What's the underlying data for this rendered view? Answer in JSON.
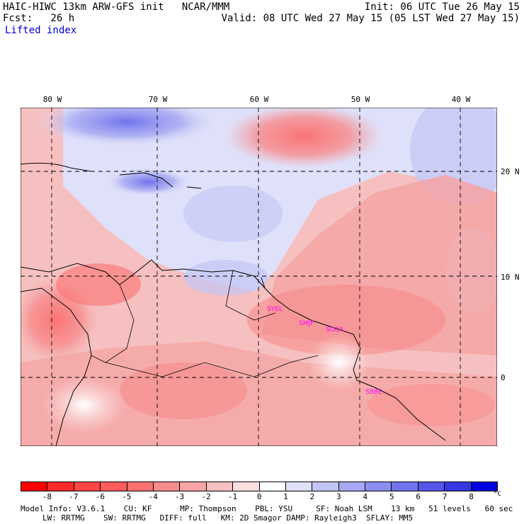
{
  "header": {
    "left_line1": "HAIC-HIWC 13km ARW-GFS init   NCAR/MMM",
    "left_line2": "Fcst:   26 h",
    "field_name": "Lifted index",
    "right_line1": "Init: 06 UTC Tue 26 May 15",
    "right_line2": "Valid: 08 UTC Wed 27 May 15 (05 LST Wed 27 May 15)"
  },
  "longitude_labels": [
    "80 W",
    "70 W",
    "60 W",
    "50 W",
    "40 W"
  ],
  "latitude_labels": [
    "20 N",
    "10 N",
    "0"
  ],
  "cities": [
    "SYEL",
    "SMJP",
    "SOCA",
    "SBBE"
  ],
  "colorbar": {
    "ticks": [
      "-8",
      "-7",
      "-6",
      "-5",
      "-4",
      "-3",
      "-2",
      "-1",
      "0",
      "1",
      "2",
      "3",
      "4",
      "5",
      "6",
      "7",
      "8"
    ],
    "unit": "°C",
    "colors": [
      "#ff0000",
      "#ff2a2a",
      "#ff4545",
      "#fc5c5c",
      "#fa7272",
      "#f78c8c",
      "#f5a5a5",
      "#f7c0c0",
      "#fcdede",
      "#ffffff",
      "#dfe0fa",
      "#c3c5f5",
      "#a6a9f2",
      "#8b8def",
      "#7173ec",
      "#5557e8",
      "#3537e4",
      "#0000e0"
    ]
  },
  "model_info": {
    "line1": "Model Info: V3.6.1    CU: KF      MP: Thompson    PBL: YSU     SF: Noah LSM    13 km   51 levels   60 sec",
    "line2": "LW: RRTMG    SW: RRTMG   DIFF: full   KM: 2D Smagor DAMP: Rayleigh3  SFLAY: MM5"
  }
}
